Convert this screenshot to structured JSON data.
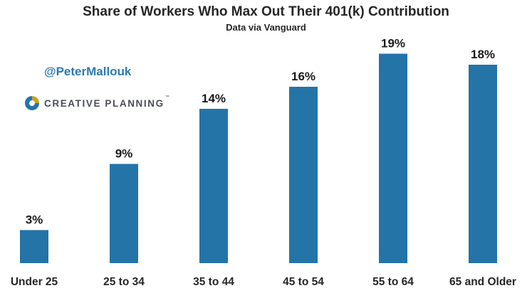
{
  "chart_data": {
    "type": "bar",
    "title": "Share of Workers Who Max Out Their 401(k) Contribution",
    "subtitle": "Data via Vanguard",
    "xlabel": "",
    "ylabel": "",
    "categories": [
      "Under 25",
      "25 to 34",
      "35 to 44",
      "45 to 54",
      "55 to 64",
      "65 and Older"
    ],
    "values": [
      3,
      9,
      14,
      16,
      19,
      18
    ],
    "value_labels": [
      "3%",
      "9%",
      "14%",
      "16%",
      "19%",
      "18%"
    ],
    "ylim": [
      0,
      20
    ],
    "grid": false,
    "legend": "none",
    "bar_color": "#2474a8"
  },
  "watermark": {
    "handle": "@PeterMallouk",
    "brand": "CREATIVE PLANNING",
    "brand_mark": "™",
    "handle_color": "#2b7bb0",
    "brand_color": "#4a4d55"
  }
}
